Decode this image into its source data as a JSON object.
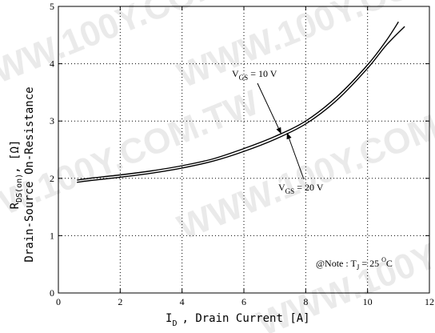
{
  "watermark": "WWW.100Y.COM.TW",
  "chart_data": {
    "type": "line",
    "xlim": [
      0,
      12
    ],
    "ylim": [
      0,
      5
    ],
    "x_ticks": [
      0,
      2,
      4,
      6,
      8,
      10,
      12
    ],
    "y_ticks": [
      0,
      1,
      2,
      3,
      4,
      5
    ],
    "x_tick_labels": [
      "0",
      "2",
      "4",
      "6",
      "8",
      "10",
      "12"
    ],
    "y_tick_labels": [
      "0",
      "1",
      "2",
      "3",
      "4",
      "5"
    ],
    "grid": "dotted",
    "xlabel": {
      "main": "I",
      "sub": "D",
      "rest": ", Drain Current   [A]"
    },
    "ylabel": {
      "line1_main": "R",
      "line1_sub": "DS(on)",
      "line1_rest": ",  [Ω]",
      "line2": "Drain-Source On-Resistance"
    },
    "series": [
      {
        "annotation": {
          "main": "V",
          "sub": "GS",
          "rest": " = 10 V"
        },
        "x": [
          0.6,
          1,
          2,
          3,
          4,
          5,
          6,
          7,
          8,
          9,
          10,
          10.6,
          11.0
        ],
        "y": [
          1.97,
          2.0,
          2.06,
          2.13,
          2.22,
          2.34,
          2.52,
          2.73,
          3.0,
          3.42,
          3.98,
          4.4,
          4.73
        ]
      },
      {
        "annotation": {
          "main": "V",
          "sub": "GS",
          "rest": " = 20 V"
        },
        "x": [
          0.6,
          1,
          2,
          3,
          4,
          5,
          6,
          7,
          8,
          9,
          10,
          10.6,
          11.2
        ],
        "y": [
          1.93,
          1.96,
          2.02,
          2.09,
          2.18,
          2.3,
          2.47,
          2.68,
          2.95,
          3.36,
          3.92,
          4.32,
          4.65
        ]
      }
    ],
    "note": {
      "prefix": "@Note : T",
      "sub": "J",
      "mid": " = 25 ",
      "sup": "O",
      "suffix": "C"
    }
  }
}
